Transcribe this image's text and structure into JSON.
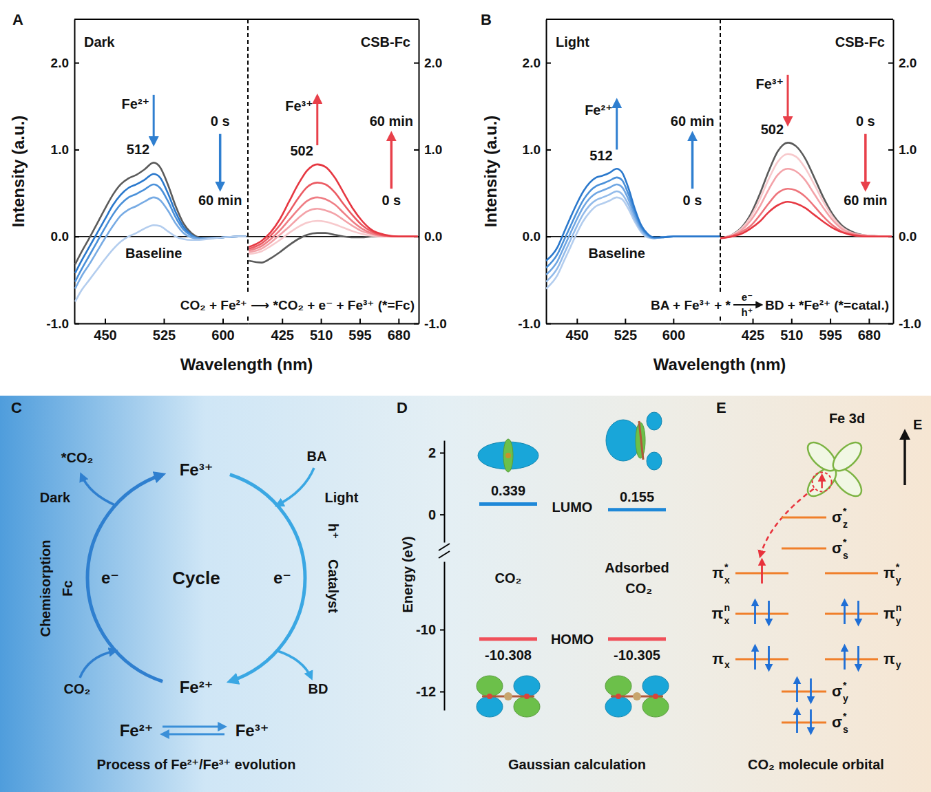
{
  "chart_data": [
    {
      "type": "line",
      "xlim": [
        411,
        632
      ],
      "xticks": [
        450,
        525,
        600
      ],
      "ylim": [
        -1,
        2.5
      ],
      "yticks": [
        {
          "value": -1,
          "label": "-1.0"
        },
        {
          "value": 0,
          "label": "0.0"
        },
        {
          "value": 1,
          "label": "1.0"
        },
        {
          "value": 2,
          "label": "2.0"
        }
      ],
      "x": [
        412,
        420,
        430,
        440,
        450,
        460,
        470,
        480,
        490,
        500,
        512,
        520,
        530,
        540,
        550,
        560,
        570,
        580,
        600,
        620,
        630
      ],
      "series": [
        {
          "color": "#5b5b5b",
          "values": [
            -0.32,
            -0.18,
            -0.02,
            0.15,
            0.32,
            0.48,
            0.6,
            0.67,
            0.71,
            0.77,
            0.85,
            0.8,
            0.6,
            0.35,
            0.15,
            0.04,
            -0.01,
            -0.02,
            -0.01,
            0,
            0
          ]
        },
        {
          "color": "#2a78cc",
          "values": [
            -0.42,
            -0.28,
            -0.12,
            0.04,
            0.2,
            0.36,
            0.48,
            0.56,
            0.6,
            0.65,
            0.72,
            0.68,
            0.5,
            0.28,
            0.11,
            0.02,
            -0.02,
            -0.02,
            -0.01,
            0,
            0
          ]
        },
        {
          "color": "#4a90d9",
          "values": [
            -0.52,
            -0.38,
            -0.22,
            -0.06,
            0.1,
            0.25,
            0.37,
            0.45,
            0.49,
            0.54,
            0.6,
            0.56,
            0.41,
            0.22,
            0.08,
            0.01,
            -0.02,
            -0.02,
            -0.01,
            0,
            0
          ]
        },
        {
          "color": "#77abe4",
          "values": [
            -0.6,
            -0.46,
            -0.32,
            -0.17,
            -0.02,
            0.12,
            0.24,
            0.31,
            0.35,
            0.4,
            0.45,
            0.42,
            0.3,
            0.15,
            0.04,
            -0.01,
            -0.03,
            -0.02,
            -0.01,
            0,
            0
          ]
        },
        {
          "color": "#b3cdee",
          "values": [
            -0.75,
            -0.62,
            -0.5,
            -0.38,
            -0.26,
            -0.15,
            -0.06,
            0.0,
            0.04,
            0.09,
            0.13,
            0.12,
            0.06,
            0.0,
            -0.03,
            -0.04,
            -0.04,
            -0.03,
            -0.01,
            0,
            0
          ]
        }
      ],
      "annotations": {
        "panel": "A",
        "ylabel": "Intensity (a.u.)",
        "xlabel": "Wavelength (nm)",
        "condition": "Dark",
        "ion": "Fe²⁺",
        "peak": 512,
        "time_start": "0 s",
        "time_end": "60 min",
        "baseline_label": "Baseline",
        "equation": "CO₂ + Fe²⁺ ⟶ *CO₂ + e⁻ + Fe³⁺ (*=Fc)"
      }
    },
    {
      "type": "line",
      "xlim": [
        350,
        724
      ],
      "xticks": [
        425,
        510,
        595,
        680
      ],
      "ylim": [
        -1,
        2.5
      ],
      "yticks": [
        {
          "value": -1,
          "label": "-1.0"
        },
        {
          "value": 0,
          "label": "0.0"
        },
        {
          "value": 1,
          "label": "1.0"
        },
        {
          "value": 2,
          "label": "2.0"
        }
      ],
      "x": [
        352,
        380,
        400,
        420,
        440,
        460,
        480,
        502,
        520,
        540,
        560,
        580,
        600,
        620,
        650,
        680,
        722
      ],
      "series": [
        {
          "color": "#5b5b5b",
          "values": [
            -0.28,
            -0.3,
            -0.25,
            -0.18,
            -0.1,
            -0.03,
            0.02,
            0.04,
            0.04,
            0.02,
            0,
            -0.01,
            -0.01,
            0,
            0,
            0,
            0
          ]
        },
        {
          "color": "#f7c9cc",
          "values": [
            -0.2,
            -0.17,
            -0.11,
            -0.04,
            0.04,
            0.11,
            0.16,
            0.18,
            0.17,
            0.14,
            0.1,
            0.06,
            0.03,
            0.01,
            0,
            0,
            0
          ]
        },
        {
          "color": "#f3a2a8",
          "values": [
            -0.18,
            -0.14,
            -0.07,
            0.02,
            0.11,
            0.21,
            0.29,
            0.32,
            0.3,
            0.26,
            0.19,
            0.12,
            0.06,
            0.03,
            0,
            0,
            0
          ]
        },
        {
          "color": "#ef7d84",
          "values": [
            -0.16,
            -0.11,
            -0.03,
            0.07,
            0.19,
            0.31,
            0.41,
            0.45,
            0.43,
            0.37,
            0.27,
            0.17,
            0.09,
            0.04,
            0.01,
            0,
            0
          ]
        },
        {
          "color": "#eb5a62",
          "values": [
            -0.14,
            -0.08,
            0.01,
            0.13,
            0.28,
            0.44,
            0.57,
            0.62,
            0.6,
            0.51,
            0.37,
            0.24,
            0.13,
            0.06,
            0.01,
            0,
            0
          ]
        },
        {
          "color": "#e63741",
          "values": [
            -0.12,
            -0.05,
            0.05,
            0.2,
            0.4,
            0.6,
            0.76,
            0.83,
            0.8,
            0.68,
            0.5,
            0.32,
            0.18,
            0.08,
            0.02,
            0,
            0
          ]
        }
      ],
      "annotations": {
        "sample": "CSB-Fc",
        "ion": "Fe³⁺",
        "peak": 502,
        "time_start": "0 s",
        "time_end": "60 min"
      }
    },
    {
      "type": "line",
      "xlim": [
        402,
        673
      ],
      "xticks": [
        450,
        525,
        600
      ],
      "ylim": [
        -1,
        2.5
      ],
      "yticks": [
        {
          "value": -1,
          "label": "-1.0"
        },
        {
          "value": 0,
          "label": "0.0"
        },
        {
          "value": 1,
          "label": "1.0"
        },
        {
          "value": 2,
          "label": "2.0"
        }
      ],
      "x": [
        402,
        420,
        430,
        440,
        450,
        460,
        470,
        480,
        490,
        500,
        512,
        520,
        530,
        540,
        550,
        560,
        570,
        580,
        600,
        640,
        672
      ],
      "series": [
        {
          "color": "#b3cdee",
          "values": [
            -0.6,
            -0.44,
            -0.28,
            -0.12,
            0.04,
            0.18,
            0.28,
            0.35,
            0.38,
            0.41,
            0.45,
            0.43,
            0.32,
            0.17,
            0.05,
            -0.01,
            -0.02,
            -0.01,
            0,
            0,
            0
          ]
        },
        {
          "color": "#93bbea",
          "values": [
            -0.52,
            -0.36,
            -0.2,
            -0.04,
            0.12,
            0.26,
            0.36,
            0.42,
            0.45,
            0.48,
            0.52,
            0.49,
            0.37,
            0.2,
            0.07,
            0,
            -0.02,
            -0.01,
            0,
            0,
            0
          ]
        },
        {
          "color": "#6fa6e3",
          "values": [
            -0.44,
            -0.28,
            -0.12,
            0.04,
            0.2,
            0.34,
            0.44,
            0.5,
            0.53,
            0.56,
            0.6,
            0.57,
            0.43,
            0.24,
            0.09,
            0.01,
            -0.02,
            -0.01,
            0,
            0,
            0
          ]
        },
        {
          "color": "#4a90d9",
          "values": [
            -0.36,
            -0.2,
            -0.04,
            0.12,
            0.28,
            0.42,
            0.52,
            0.58,
            0.61,
            0.64,
            0.68,
            0.65,
            0.49,
            0.28,
            0.11,
            0.02,
            -0.01,
            -0.01,
            0,
            0,
            0
          ]
        },
        {
          "color": "#2a78cc",
          "values": [
            -0.28,
            -0.12,
            0.05,
            0.22,
            0.38,
            0.52,
            0.62,
            0.68,
            0.7,
            0.73,
            0.78,
            0.74,
            0.56,
            0.32,
            0.13,
            0.03,
            -0.01,
            -0.01,
            0,
            0,
            0
          ]
        }
      ],
      "annotations": {
        "panel": "B",
        "ylabel": "Intensity (a.u.)",
        "xlabel": "Wavelength (nm)",
        "condition": "Light",
        "ion": "Fe²⁺",
        "peak": 512,
        "time_start": "0 s",
        "time_end": "60 min",
        "baseline_label": "Baseline",
        "equation": {
          "left": "BA + Fe³⁺ + *",
          "above": "e⁻",
          "below": "h⁺",
          "right": "BD + *Fe²⁺ (*=catal.)"
        }
      }
    },
    {
      "type": "line",
      "xlim": [
        354,
        733
      ],
      "xticks": [
        425,
        510,
        595,
        680
      ],
      "ylim": [
        -1,
        2.5
      ],
      "yticks": [
        {
          "value": -1,
          "label": "-1.0"
        },
        {
          "value": 0,
          "label": "0.0"
        },
        {
          "value": 1,
          "label": "1.0"
        },
        {
          "value": 2,
          "label": "2.0"
        }
      ],
      "x": [
        354,
        380,
        400,
        420,
        440,
        460,
        480,
        502,
        520,
        540,
        560,
        580,
        600,
        620,
        650,
        680,
        730
      ],
      "series": [
        {
          "color": "#5b5b5b",
          "values": [
            -0.02,
            0.02,
            0.1,
            0.25,
            0.48,
            0.75,
            0.98,
            1.08,
            1.04,
            0.9,
            0.68,
            0.45,
            0.26,
            0.13,
            0.04,
            0.01,
            0
          ]
        },
        {
          "color": "#f7c9cc",
          "values": [
            -0.02,
            0.02,
            0.09,
            0.22,
            0.42,
            0.66,
            0.86,
            0.95,
            0.92,
            0.79,
            0.6,
            0.4,
            0.23,
            0.11,
            0.03,
            0.01,
            0
          ]
        },
        {
          "color": "#f3a2a8",
          "values": [
            -0.02,
            0.01,
            0.07,
            0.18,
            0.34,
            0.54,
            0.71,
            0.78,
            0.75,
            0.65,
            0.49,
            0.33,
            0.19,
            0.09,
            0.03,
            0.01,
            0
          ]
        },
        {
          "color": "#ee747b",
          "values": [
            -0.02,
            0.01,
            0.05,
            0.12,
            0.24,
            0.38,
            0.5,
            0.55,
            0.53,
            0.46,
            0.35,
            0.23,
            0.13,
            0.06,
            0.02,
            0,
            0
          ]
        },
        {
          "color": "#e63741",
          "values": [
            -0.02,
            0,
            0.03,
            0.09,
            0.17,
            0.28,
            0.36,
            0.4,
            0.38,
            0.33,
            0.25,
            0.17,
            0.1,
            0.05,
            0.01,
            0,
            0
          ]
        }
      ],
      "annotations": {
        "sample": "CSB-Fc",
        "ion": "Fe³⁺",
        "peak": 502,
        "time_start": "0 s",
        "time_end": "60 min"
      }
    }
  ],
  "diagrams": {
    "C": {
      "label": "C",
      "center": "Cycle",
      "top": "Fe³⁺",
      "bottom": "Fe²⁺",
      "left": {
        "condition": "Dark",
        "process": "Chemisorption",
        "agent": "Fc",
        "electron": "e⁻",
        "input": "CO₂",
        "output": "*CO₂"
      },
      "right": {
        "condition": "Light",
        "agent": "h⁺",
        "process": "Catalyst",
        "electron": "e⁻",
        "input": "BA",
        "output": "BD"
      },
      "equilibrium": {
        "left": "Fe²⁺",
        "right": "Fe³⁺"
      },
      "caption": "Process of Fe²⁺/Fe³⁺ evolution"
    },
    "D": {
      "label": "D",
      "axis": {
        "title": "Energy (eV)",
        "upper": {
          "range": [
            -0.9,
            2.4
          ],
          "ticks": [
            0,
            2
          ]
        },
        "lower": {
          "range": [
            -12.6,
            -7.8
          ],
          "ticks": [
            -12,
            -10
          ]
        }
      },
      "level_labels": {
        "lumo": "LUMO",
        "homo": "HOMO"
      },
      "molecules": [
        {
          "name": "CO₂",
          "lumo": 0.339,
          "homo": -10.308
        },
        {
          "name": "Adsorbed CO₂",
          "lumo": 0.155,
          "homo": -10.305
        }
      ],
      "caption": "Gaussian calculation"
    },
    "E": {
      "label": "E",
      "orbital": "Fe 3d",
      "energy_axis": "E",
      "levels": [
        {
          "center": {
            "base": "σ",
            "sup": "*",
            "sub": "z",
            "electrons": 0
          }
        },
        {
          "center": {
            "base": "σ",
            "sup": "*",
            "sub": "s",
            "electrons": 0
          }
        },
        {
          "left": {
            "base": "π",
            "sup": "*",
            "sub": "x",
            "electrons": 1
          },
          "right": {
            "base": "π",
            "sup": "*",
            "sub": "y",
            "electrons": 0
          }
        },
        {
          "left": {
            "base": "π",
            "sup": "n",
            "sub": "x",
            "electrons": 2
          },
          "right": {
            "base": "π",
            "sup": "n",
            "sub": "y",
            "electrons": 2
          }
        },
        {
          "left": {
            "base": "π",
            "sub": "x",
            "electrons": 2
          },
          "right": {
            "base": "π",
            "sub": "y",
            "electrons": 2
          }
        },
        {
          "center": {
            "base": "σ",
            "sup": "*",
            "sub": "y",
            "electrons": 2
          }
        },
        {
          "center": {
            "base": "σ",
            "sup": "*",
            "sub": "s",
            "electrons": 2
          }
        }
      ],
      "caption": "CO₂ molecule orbital"
    }
  }
}
